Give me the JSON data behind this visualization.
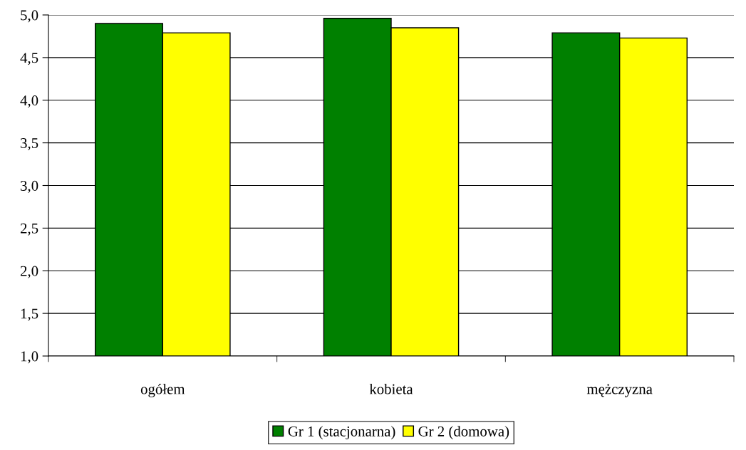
{
  "chart_data": {
    "type": "bar",
    "categories": [
      "ogółem",
      "kobieta",
      "mężczyzna"
    ],
    "series": [
      {
        "name": "Gr 1 (stacjonarna)",
        "color": "#008000",
        "values": [
          4.9,
          4.96,
          4.79
        ]
      },
      {
        "name": "Gr 2 (domowa)",
        "color": "#ffff00",
        "values": [
          4.79,
          4.85,
          4.73
        ]
      }
    ],
    "ylim": [
      1.0,
      5.0
    ],
    "yticks": [
      {
        "value": 1.0,
        "label": "1,0"
      },
      {
        "value": 1.5,
        "label": "1,5"
      },
      {
        "value": 2.0,
        "label": "2,0"
      },
      {
        "value": 2.5,
        "label": "2,5"
      },
      {
        "value": 3.0,
        "label": "3,0"
      },
      {
        "value": 3.5,
        "label": "3,5"
      },
      {
        "value": 4.0,
        "label": "4,0"
      },
      {
        "value": 4.5,
        "label": "4,5"
      },
      {
        "value": 5.0,
        "label": "5,0"
      }
    ],
    "grid": "y",
    "legend": "bottom"
  }
}
